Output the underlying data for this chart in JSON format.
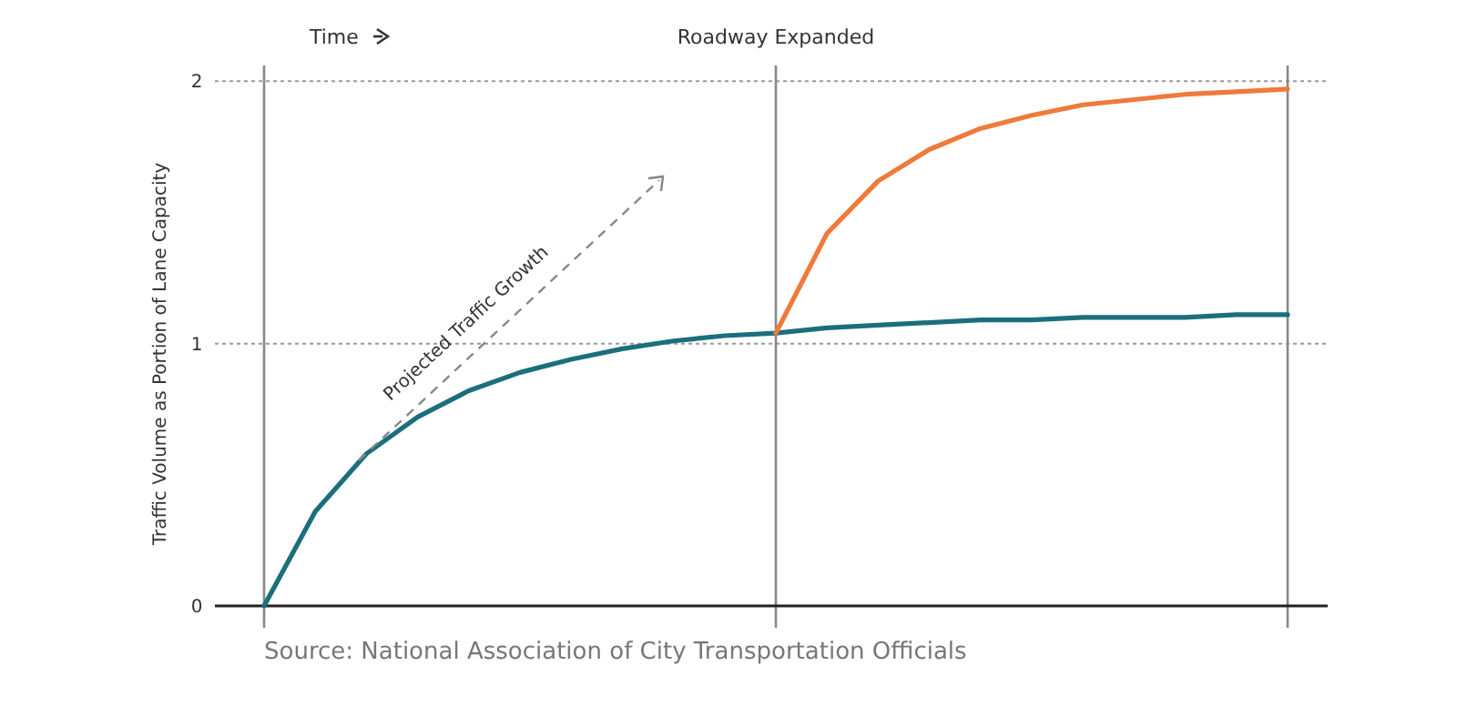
{
  "chart_data": {
    "type": "line",
    "ylabel": "Traffic Volume as Portion of Lane Capacity",
    "categories": [
      null,
      null,
      null,
      null,
      null,
      null,
      null,
      null,
      null,
      null,
      null,
      null,
      null,
      null,
      null,
      null,
      null,
      null,
      null,
      null,
      null
    ],
    "series": [
      {
        "color": "#1b6f7d",
        "values": [
          0,
          0.36,
          0.58,
          0.72,
          0.82,
          0.89,
          0.94,
          0.98,
          1.01,
          1.03,
          1.04,
          1.06,
          1.07,
          1.08,
          1.09,
          1.09,
          1.1,
          1.1,
          1.1,
          1.11,
          1.11
        ]
      },
      {
        "color": "#ee7a3b",
        "values": [
          null,
          null,
          null,
          null,
          null,
          null,
          null,
          null,
          null,
          null,
          1.04,
          1.42,
          1.62,
          1.74,
          1.82,
          1.87,
          1.91,
          1.93,
          1.95,
          1.96,
          1.97
        ]
      }
    ],
    "ylim": [
      0,
      2.06
    ],
    "yticks": [
      0,
      1,
      2
    ],
    "grid": true,
    "tick_labels": "y",
    "annotations": [
      "Time",
      "Projected Traffic Growth",
      "Source: National Association of City Transportation Officials",
      "Roadway Expanded"
    ]
  }
}
